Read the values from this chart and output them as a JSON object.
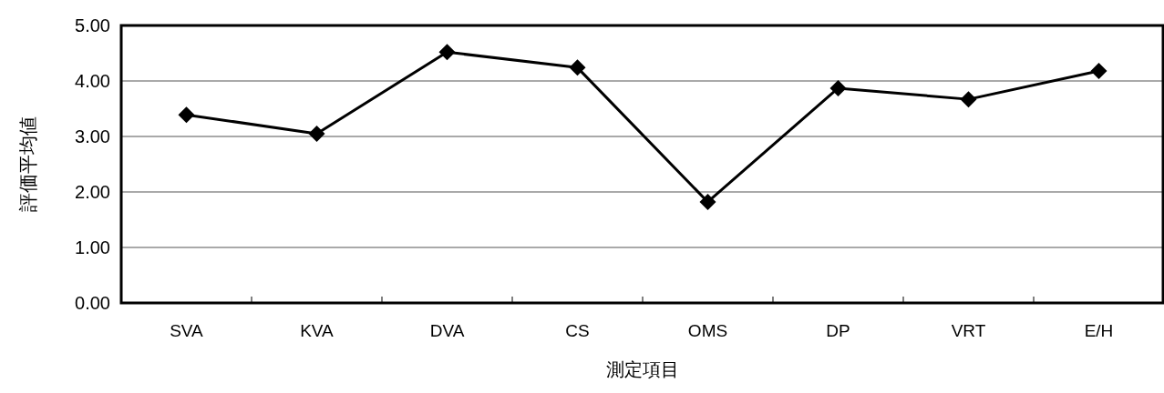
{
  "chart_data": {
    "type": "line",
    "xlabel": "測定項目",
    "ylabel": "評価平均値",
    "categories": [
      "SVA",
      "KVA",
      "DVA",
      "CS",
      "OMS",
      "DP",
      "VRT",
      "E/H"
    ],
    "series": [
      {
        "color": "#000000",
        "values": [
          3.39,
          3.05,
          4.52,
          4.24,
          1.82,
          3.87,
          3.67,
          4.18
        ]
      }
    ],
    "ylim": [
      0,
      5
    ],
    "yticks": [
      {
        "value": 0,
        "label": "0.00"
      },
      {
        "value": 1,
        "label": "1.00"
      },
      {
        "value": 2,
        "label": "2.00"
      },
      {
        "value": 3,
        "label": "3.00"
      },
      {
        "value": 4,
        "label": "4.00"
      },
      {
        "value": 5,
        "label": "5.00"
      }
    ],
    "grid": "y",
    "marker": "diamond",
    "line_style": "solid"
  }
}
